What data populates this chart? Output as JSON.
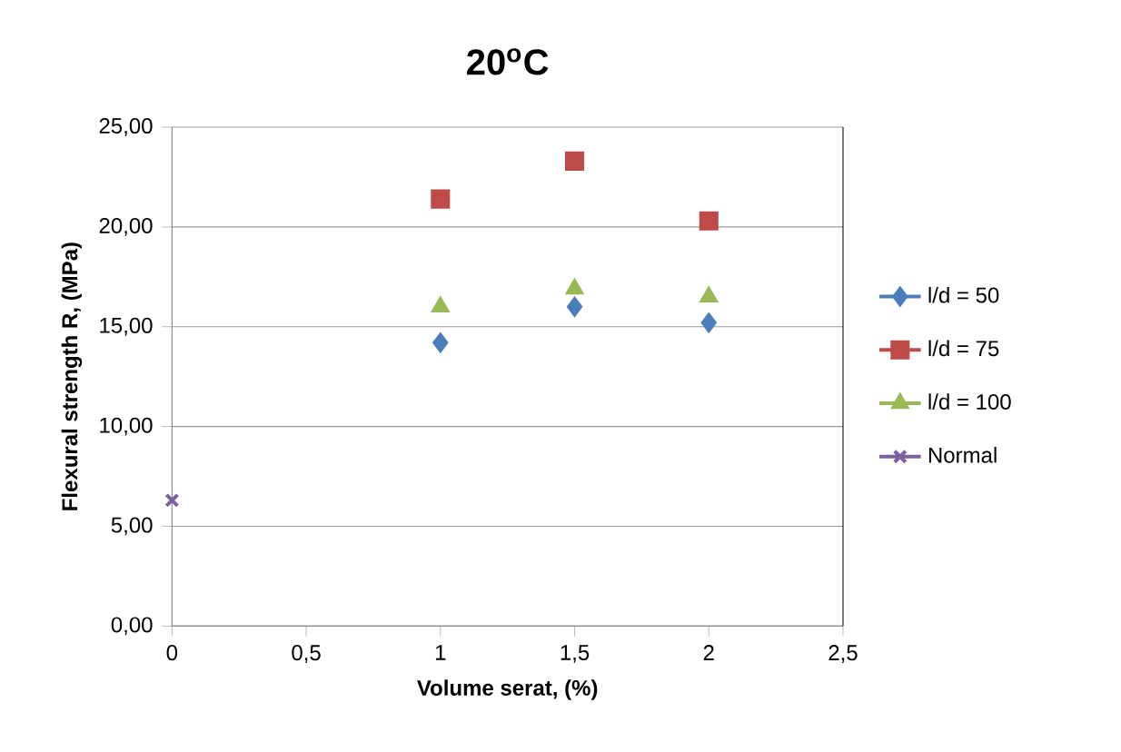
{
  "chart_data": {
    "type": "scatter",
    "title": "20$^{o}$C",
    "xlabel": "Volume serat, (%)",
    "ylabel": "Flexural strength R, (MPa)",
    "xlim": [
      0,
      2.5
    ],
    "ylim": [
      0,
      25
    ],
    "xticks": [
      0,
      {
        "value": 0.5,
        "label": "0,5"
      },
      1,
      {
        "value": 1.5,
        "label": "1,5"
      },
      2,
      {
        "value": 2.5,
        "label": "2,5"
      }
    ],
    "yticks": [
      {
        "value": 0,
        "label": "0,00"
      },
      {
        "value": 5,
        "label": "5,00"
      },
      {
        "value": 10,
        "label": "10,00"
      },
      {
        "value": 15,
        "label": "15,00"
      },
      {
        "value": 20,
        "label": "20,00"
      },
      {
        "value": 25,
        "label": "25,00"
      }
    ],
    "grid": "y",
    "legend": "right",
    "series": [
      {
        "name": "l/d = 50",
        "color": "#4a7ebb",
        "marker": "diamond",
        "x": [
          1,
          1.5,
          2
        ],
        "values": [
          14.2,
          16.0,
          15.2
        ]
      },
      {
        "name": "l/d = 75",
        "color": "#be4b48",
        "marker": "square",
        "x": [
          1,
          1.5,
          2
        ],
        "values": [
          21.4,
          23.3,
          20.3
        ]
      },
      {
        "name": "l/d = 100",
        "color": "#98b954",
        "marker": "triangle",
        "x": [
          1,
          1.5,
          2
        ],
        "values": [
          16.0,
          16.9,
          16.5
        ]
      },
      {
        "name": "Normal",
        "color": "#7d60a0",
        "marker": "cross",
        "x": [
          0
        ],
        "values": [
          6.3
        ]
      }
    ]
  }
}
